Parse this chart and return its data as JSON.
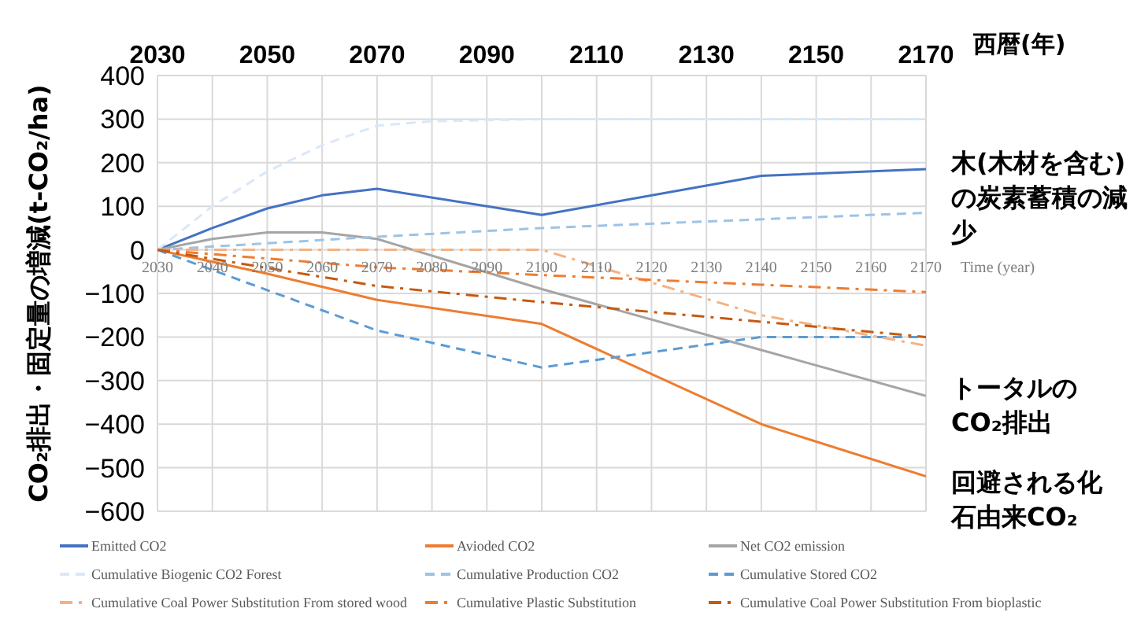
{
  "chart_data": {
    "type": "line",
    "ylabel": "CO₂排出・固定量の増減(t-CO₂/ha)",
    "xlabel": "Time (year)",
    "x2label": "西暦(年)",
    "xlim": [
      2030,
      2170
    ],
    "xticks": [
      2030,
      2040,
      2050,
      2060,
      2070,
      2080,
      2090,
      2100,
      2110,
      2120,
      2130,
      2140,
      2150,
      2160,
      2170
    ],
    "x2lim": [
      2030,
      2170
    ],
    "x2ticks": [
      2030,
      2050,
      2070,
      2090,
      2110,
      2130,
      2150,
      2170
    ],
    "ylim": [
      -600,
      400
    ],
    "yticks": [
      -600,
      -500,
      -400,
      -300,
      -200,
      -100,
      0,
      100,
      200,
      300,
      400
    ],
    "grid": true,
    "legend": "bottom",
    "marker": "none",
    "annotations": [
      "木(木材を含む)の炭素蓄積の減少",
      "トータルのCO₂排出",
      "回避される化石由来CO₂"
    ],
    "series": [
      {
        "name": "Emitted CO2",
        "color": "#4472c4",
        "line_style": "solid",
        "x": [
          2030,
          2040,
          2050,
          2060,
          2070,
          2100,
          2140,
          2170
        ],
        "values": [
          0,
          50,
          95,
          125,
          140,
          80,
          170,
          185
        ]
      },
      {
        "name": "Avioded CO2",
        "color": "#ed7d31",
        "line_style": "solid",
        "x": [
          2030,
          2050,
          2070,
          2100,
          2140,
          2170
        ],
        "values": [
          0,
          -55,
          -115,
          -170,
          -400,
          -520
        ]
      },
      {
        "name": "Net CO2 emission",
        "color": "#a5a5a5",
        "line_style": "solid",
        "x": [
          2030,
          2040,
          2050,
          2060,
          2070,
          2100,
          2140,
          2170
        ],
        "values": [
          0,
          25,
          40,
          40,
          25,
          -90,
          -230,
          -335
        ]
      },
      {
        "name": "Cumulative Biogenic CO2 Forest",
        "color": "#dae8f7",
        "line_style": "dashed",
        "x": [
          2030,
          2040,
          2050,
          2060,
          2070,
          2080,
          2100,
          2170
        ],
        "values": [
          0,
          100,
          180,
          240,
          285,
          295,
          300,
          300
        ]
      },
      {
        "name": "Cumulative  Production CO2",
        "color": "#9dc3e6",
        "line_style": "dashed",
        "x": [
          2030,
          2070,
          2100,
          2140,
          2170
        ],
        "values": [
          0,
          30,
          50,
          70,
          85
        ]
      },
      {
        "name": "Cumulative Stored CO2",
        "color": "#5b9bd5",
        "line_style": "dashed",
        "x": [
          2030,
          2070,
          2100,
          2140,
          2170
        ],
        "values": [
          0,
          -185,
          -270,
          -200,
          -200
        ]
      },
      {
        "name": "Cumulative Coal Power Substitution From stored wood",
        "color": "#f4b183",
        "line_style": "dashdot",
        "x": [
          2030,
          2100,
          2140,
          2170
        ],
        "values": [
          0,
          0,
          -150,
          -220
        ]
      },
      {
        "name": "Cumulative Plastic Substitution",
        "color": "#ed7d31",
        "line_style": "dashdot",
        "x": [
          2030,
          2070,
          2100,
          2140,
          2170
        ],
        "values": [
          0,
          -40,
          -58,
          -80,
          -97
        ]
      },
      {
        "name": "Cumulative Coal Power Substitution From bioplastic",
        "color": "#c55a11",
        "line_style": "dashdot",
        "x": [
          2030,
          2070,
          2100,
          2140,
          2170
        ],
        "values": [
          0,
          -83,
          -120,
          -165,
          -200
        ]
      }
    ]
  }
}
